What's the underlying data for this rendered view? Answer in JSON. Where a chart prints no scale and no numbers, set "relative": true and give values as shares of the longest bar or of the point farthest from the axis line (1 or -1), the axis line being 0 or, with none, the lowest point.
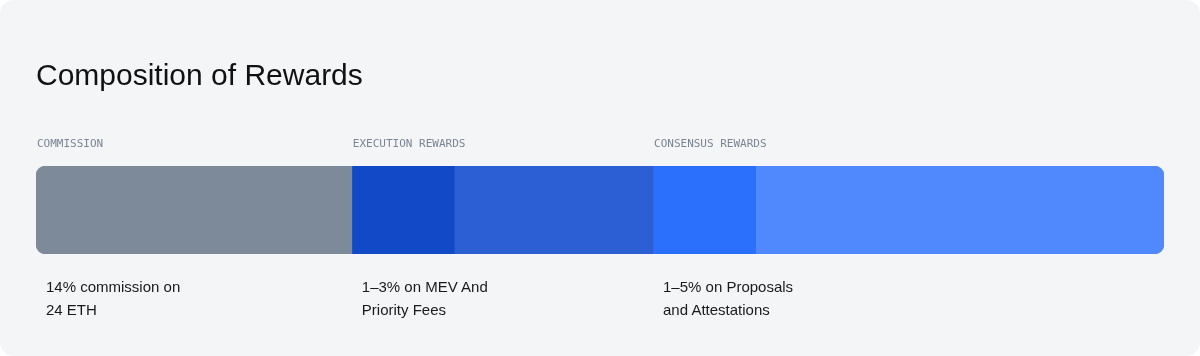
{
  "chart_data": {
    "type": "bar",
    "orientation": "horizontal",
    "stacked": true,
    "relative": true,
    "title": "Composition of Rewards",
    "categories": [
      null
    ],
    "tick_labels": false,
    "legend": false,
    "series": [
      {
        "name": "COMMISSION",
        "color": "#7d8a99",
        "values": [
          0.28
        ]
      },
      {
        "name": "EXECUTION REWARDS",
        "color": "#1149c6",
        "values": [
          0.091
        ]
      },
      {
        "color": "#2c5fd4",
        "values": [
          0.176
        ]
      },
      {
        "name": "CONSENSUS REWARDS",
        "color": "#2b6ffd",
        "values": [
          0.091
        ]
      },
      {
        "color": "#5089fd",
        "values": [
          0.362
        ]
      }
    ],
    "annotations": [
      "14% commission on 24 ETH",
      "1–3% on MEV And Priority Fees",
      "1–5% on Proposals and Attestations"
    ]
  }
}
